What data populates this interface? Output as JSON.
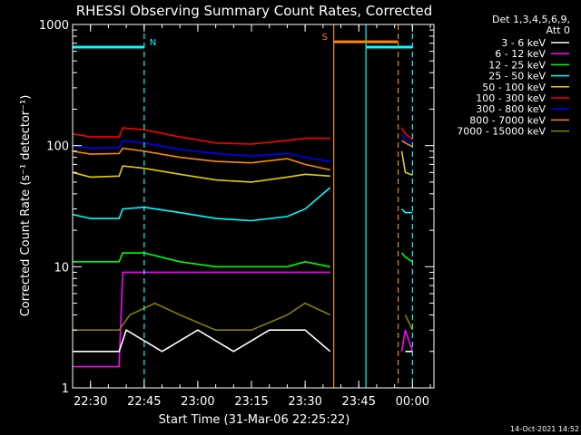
{
  "chart_data": {
    "type": "line",
    "title": "RHESSI Observing Summary Count Rates, Corrected",
    "xlabel": "Start Time (31-Mar-06 22:25:22)",
    "ylabel": "Corrected Count Rate (s⁻¹ detector⁻¹)",
    "yscale": "log",
    "ylim": [
      1,
      1000
    ],
    "y_ticks": [
      "1",
      "10",
      "100",
      "1000"
    ],
    "xlim": [
      "22:25",
      "00:06"
    ],
    "x_ticks": [
      "22:30",
      "22:45",
      "23:00",
      "23:15",
      "23:30",
      "23:45",
      "00:00"
    ],
    "legend": {
      "position": "top-right",
      "header": [
        "Det 1,3,4,5,6,9,",
        "Att 0"
      ],
      "entries": [
        {
          "label": "3 - 6 keV",
          "color": "#ffffff"
        },
        {
          "label": "6 - 12 keV",
          "color": "#ff00ff"
        },
        {
          "label": "12 - 25 keV",
          "color": "#00ff00"
        },
        {
          "label": "25 - 50 keV",
          "color": "#00ffff"
        },
        {
          "label": "50 - 100 keV",
          "color": "#e0d000"
        },
        {
          "label": "100 - 300 keV",
          "color": "#ff0000"
        },
        {
          "label": "300 - 800 keV",
          "color": "#0000ff"
        },
        {
          "label": "800 - 7000 keV",
          "color": "#ff8800"
        },
        {
          "label": "7000 - 15000 keV",
          "color": "#808000"
        }
      ]
    },
    "series": [
      {
        "name": "100 - 300 keV",
        "color": "#ff0000",
        "x": [
          "22:25",
          "22:30",
          "22:38",
          "22:39",
          "22:45",
          "22:55",
          "23:05",
          "23:15",
          "23:25",
          "23:30",
          "23:37",
          "23:37",
          "23:57",
          "23:58",
          "00:00"
        ],
        "values": [
          125,
          118,
          118,
          140,
          135,
          118,
          105,
          103,
          110,
          115,
          115,
          null,
          140,
          125,
          112
        ]
      },
      {
        "name": "300 - 800 keV",
        "color": "#0000ff",
        "x": [
          "22:25",
          "22:30",
          "22:38",
          "22:39",
          "22:45",
          "22:55",
          "23:05",
          "23:15",
          "23:25",
          "23:30",
          "23:37",
          "23:37",
          "23:57",
          "23:58",
          "00:00"
        ],
        "values": [
          100,
          95,
          96,
          110,
          105,
          93,
          86,
          82,
          86,
          80,
          74,
          null,
          125,
          110,
          105
        ]
      },
      {
        "name": "800 - 7000 keV",
        "color": "#ff8800",
        "x": [
          "22:25",
          "22:30",
          "22:38",
          "22:39",
          "22:45",
          "22:55",
          "23:05",
          "23:15",
          "23:25",
          "23:30",
          "23:37",
          "23:37",
          "23:57",
          "23:58",
          "00:00"
        ],
        "values": [
          90,
          85,
          86,
          95,
          90,
          80,
          74,
          72,
          78,
          70,
          63,
          null,
          110,
          105,
          98
        ]
      },
      {
        "name": "50 - 100 keV",
        "color": "#e0d000",
        "x": [
          "22:25",
          "22:30",
          "22:38",
          "22:39",
          "22:45",
          "22:55",
          "23:05",
          "23:15",
          "23:25",
          "23:30",
          "23:37",
          "23:37",
          "23:57",
          "23:58",
          "00:00"
        ],
        "values": [
          60,
          55,
          56,
          68,
          65,
          58,
          52,
          50,
          55,
          58,
          56,
          null,
          90,
          60,
          57
        ]
      },
      {
        "name": "25 - 50 keV",
        "color": "#00ffff",
        "x": [
          "22:25",
          "22:30",
          "22:38",
          "22:39",
          "22:45",
          "22:55",
          "23:05",
          "23:15",
          "23:25",
          "23:30",
          "23:37",
          "23:37",
          "23:57",
          "23:58",
          "00:00"
        ],
        "values": [
          27,
          25,
          25,
          30,
          31,
          28,
          25,
          24,
          26,
          30,
          45,
          null,
          30,
          28,
          28
        ]
      },
      {
        "name": "12 - 25 keV",
        "color": "#00ff00",
        "x": [
          "22:25",
          "22:30",
          "22:38",
          "22:39",
          "22:45",
          "22:55",
          "23:05",
          "23:15",
          "23:25",
          "23:30",
          "23:37",
          "23:37",
          "23:57",
          "23:58",
          "00:00"
        ],
        "values": [
          11,
          11,
          11,
          13,
          13,
          11,
          10,
          10,
          10,
          11,
          10,
          null,
          13,
          12,
          11
        ]
      },
      {
        "name": "6 - 12 keV",
        "color": "#ff00ff",
        "x": [
          "22:25",
          "22:38",
          "22:39",
          "22:45",
          "22:55",
          "23:05",
          "23:15",
          "23:25",
          "23:30",
          "23:37",
          "23:37",
          "23:57",
          "23:58",
          "00:00"
        ],
        "values": [
          1.5,
          1.5,
          9,
          9,
          9,
          9,
          9,
          9,
          9,
          9,
          null,
          2,
          3,
          2
        ]
      },
      {
        "name": "7000 - 15000 keV",
        "color": "#808000",
        "x": [
          "22:25",
          "22:38",
          "22:41",
          "22:48",
          "22:55",
          "23:05",
          "23:15",
          "23:25",
          "23:30",
          "23:37",
          "23:37",
          "23:58",
          "00:00"
        ],
        "values": [
          3,
          3,
          4,
          5,
          4,
          3,
          3,
          4,
          5,
          4,
          null,
          4,
          3
        ]
      },
      {
        "name": "3 - 6 keV",
        "color": "#ffffff",
        "x": [
          "22:25",
          "22:38",
          "22:40",
          "22:50",
          "23:00",
          "23:10",
          "23:20",
          "23:30",
          "23:37",
          "23:37",
          "23:58",
          "00:00"
        ],
        "values": [
          2,
          2,
          3,
          2,
          3,
          2,
          3,
          3,
          2,
          null,
          2,
          2
        ]
      }
    ],
    "annotations": {
      "flag_labels": [
        {
          "text": "N",
          "color": "#00ffff"
        },
        {
          "text": "S",
          "color": "#ff8800"
        }
      ],
      "flag_bars": [
        {
          "color": "#00ffff",
          "x_start": "22:25",
          "x_end": "22:45",
          "y": 650
        },
        {
          "color": "#ff8800",
          "x_start": "23:38",
          "x_end": "23:56",
          "y": 720
        },
        {
          "color": "#00ffff",
          "x_start": "23:47",
          "x_end": "00:00",
          "y": 650
        }
      ],
      "vertical_lines": [
        {
          "x": "22:45",
          "color": "#00ffff",
          "style": "dashed"
        },
        {
          "x": "23:38",
          "color": "#ff8800",
          "style": "solid"
        },
        {
          "x": "23:47",
          "color": "#00ffff",
          "style": "solid"
        },
        {
          "x": "23:56",
          "color": "#ff8800",
          "style": "dashed"
        },
        {
          "x": "00:00",
          "color": "#00ffff",
          "style": "dashed"
        }
      ]
    },
    "grid": false
  },
  "footer": {
    "timestamp": "14-Oct-2021 14:52"
  }
}
